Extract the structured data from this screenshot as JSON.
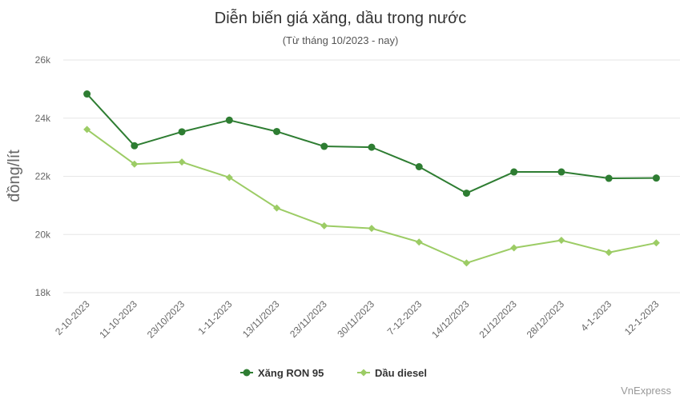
{
  "chart_data": {
    "type": "line",
    "title": "Diễn biến giá xăng, dầu trong nước",
    "subtitle": "(Từ tháng 10/2023 - nay)",
    "ylabel": "đồng/lít",
    "xlabel": "",
    "categories": [
      "2-10-2023",
      "11-10-2023",
      "23/10/2023",
      "1-11-2023",
      "13/11/2023",
      "23/11/2023",
      "30/11/2023",
      "7-12-2023",
      "14/12/2023",
      "21/12/2023",
      "28/12/2023",
      "4-1-2023",
      "12-1-2023"
    ],
    "ylim": [
      18000,
      26000
    ],
    "yticks": [
      {
        "value": 18000,
        "label": "18k"
      },
      {
        "value": 20000,
        "label": "20k"
      },
      {
        "value": 22000,
        "label": "22k"
      },
      {
        "value": 24000,
        "label": "24k"
      },
      {
        "value": 26000,
        "label": "26k"
      }
    ],
    "grid": true,
    "legend_position": "bottom-center",
    "series": [
      {
        "name": "Xăng RON 95",
        "color": "#2e7d32",
        "marker": "circle",
        "values": [
          24830,
          23050,
          23530,
          23930,
          23540,
          23030,
          23000,
          22330,
          21420,
          22150,
          22150,
          21930,
          21940
        ]
      },
      {
        "name": "Dầu diesel",
        "color": "#9ccc65",
        "marker": "diamond",
        "values": [
          23610,
          22420,
          22490,
          21960,
          20910,
          20300,
          20210,
          19740,
          19020,
          19540,
          19800,
          19380,
          19710
        ]
      }
    ],
    "credit": "VnExpress"
  }
}
